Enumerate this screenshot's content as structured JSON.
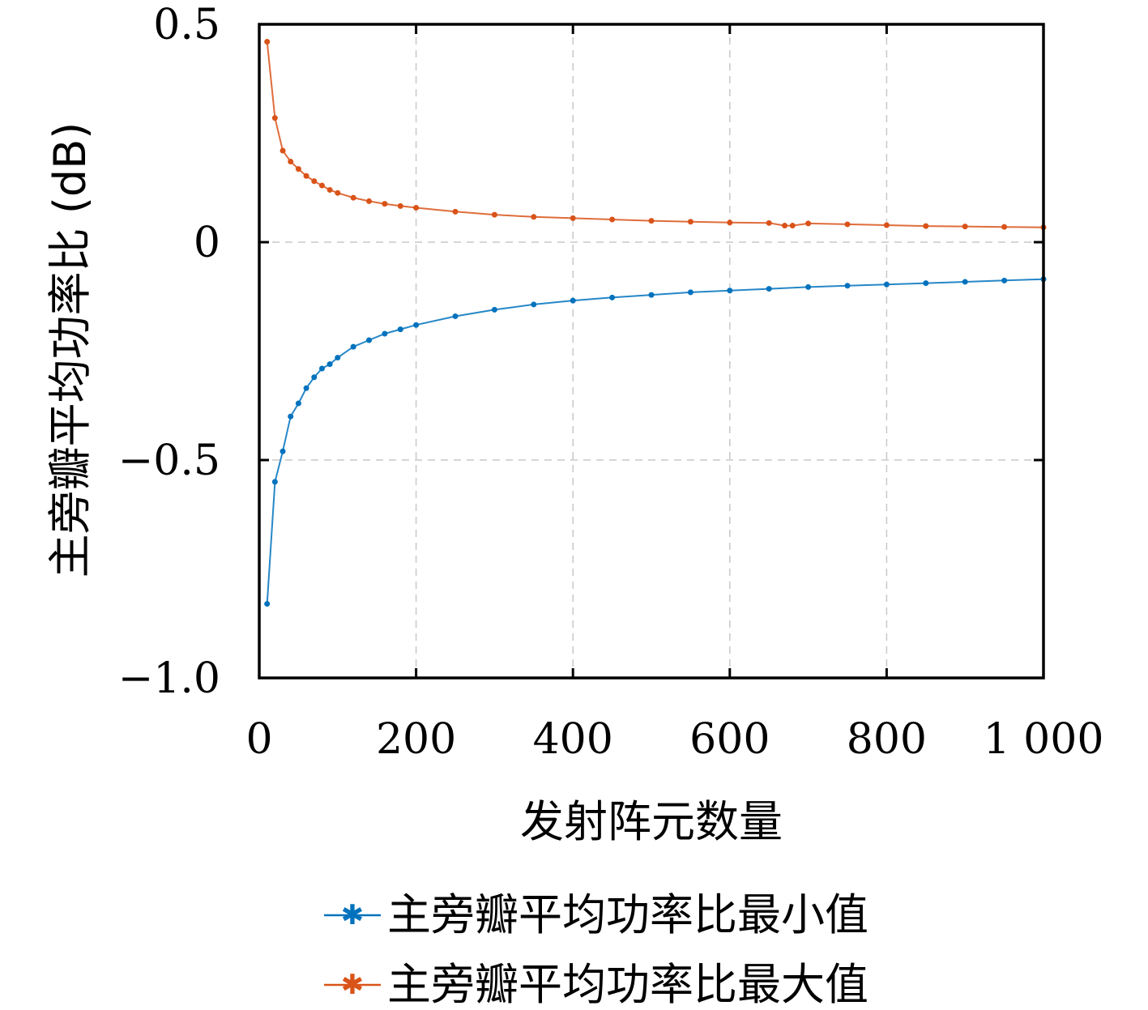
{
  "chart_data": {
    "type": "line",
    "title": "",
    "xlabel": "发射阵元数量",
    "ylabel": "主旁瓣平均功率比 (dB)",
    "xlim": [
      0,
      1000
    ],
    "ylim": [
      -1.0,
      0.5
    ],
    "xticks": [
      0,
      200,
      400,
      600,
      800,
      1000
    ],
    "xtick_labels": [
      "0",
      "200",
      "400",
      "600",
      "800",
      "1 000"
    ],
    "yticks": [
      -1.0,
      -0.5,
      0,
      0.5
    ],
    "ytick_labels": [
      "−1.0",
      "−0.5",
      "0",
      "0.5"
    ],
    "grid": true,
    "legend_position": "bottom",
    "marker": "asterisk",
    "series": [
      {
        "name": "主旁瓣平均功率比最小值",
        "color": "#0072BD",
        "x": [
          10,
          20,
          30,
          40,
          50,
          60,
          70,
          80,
          90,
          100,
          120,
          140,
          160,
          180,
          200,
          250,
          300,
          350,
          400,
          450,
          500,
          550,
          600,
          650,
          700,
          750,
          800,
          850,
          900,
          950,
          1000
        ],
        "y": [
          -0.83,
          -0.55,
          -0.48,
          -0.4,
          -0.37,
          -0.335,
          -0.31,
          -0.29,
          -0.28,
          -0.265,
          -0.24,
          -0.225,
          -0.21,
          -0.2,
          -0.19,
          -0.17,
          -0.155,
          -0.143,
          -0.134,
          -0.127,
          -0.121,
          -0.115,
          -0.111,
          -0.107,
          -0.103,
          -0.1,
          -0.097,
          -0.094,
          -0.091,
          -0.088,
          -0.085
        ]
      },
      {
        "name": "主旁瓣平均功率比最大值",
        "color": "#D95319",
        "x": [
          10,
          20,
          30,
          40,
          50,
          60,
          70,
          80,
          90,
          100,
          120,
          140,
          160,
          180,
          200,
          250,
          300,
          350,
          400,
          450,
          500,
          550,
          600,
          650,
          670,
          680,
          700,
          750,
          800,
          850,
          900,
          950,
          1000
        ],
        "y": [
          0.46,
          0.285,
          0.21,
          0.185,
          0.168,
          0.152,
          0.14,
          0.13,
          0.12,
          0.113,
          0.102,
          0.094,
          0.088,
          0.083,
          0.079,
          0.07,
          0.063,
          0.058,
          0.055,
          0.052,
          0.049,
          0.047,
          0.045,
          0.044,
          0.038,
          0.038,
          0.043,
          0.041,
          0.039,
          0.037,
          0.036,
          0.035,
          0.034
        ]
      }
    ]
  }
}
